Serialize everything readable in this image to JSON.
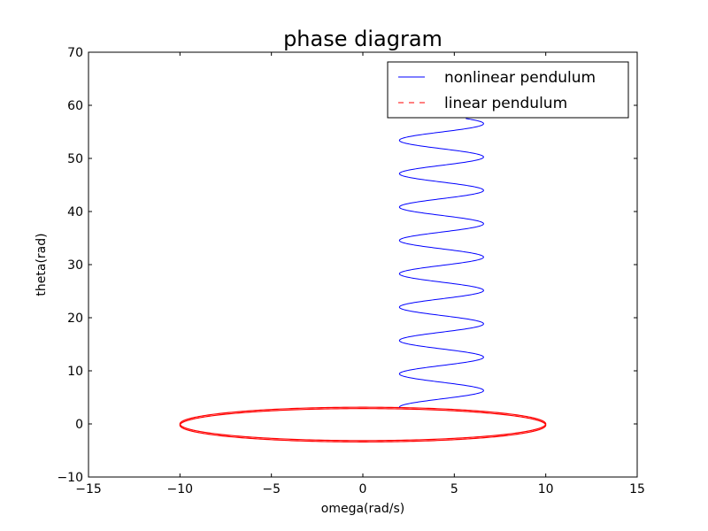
{
  "chart_data": {
    "type": "line",
    "title": "phase diagram",
    "xlabel": "omega(rad/s)",
    "ylabel": "theta(rad)",
    "xlim": [
      -15,
      15
    ],
    "ylim": [
      -10,
      70
    ],
    "xticks": [
      -15,
      -10,
      -5,
      0,
      5,
      10,
      15
    ],
    "yticks": [
      -10,
      0,
      10,
      20,
      30,
      40,
      50,
      60,
      70
    ],
    "xtick_labels": [
      "−15",
      "−10",
      "−5",
      "0",
      "5",
      "10",
      "15"
    ],
    "ytick_labels": [
      "−10",
      "0",
      "10",
      "20",
      "30",
      "40",
      "50",
      "60",
      "70"
    ],
    "grid": false,
    "legend_position": "top-right",
    "series": [
      {
        "name": "nonlinear pendulum",
        "color": "#0000ff",
        "style": "solid",
        "description_points": [
          [
            2.0,
            3.1
          ],
          [
            6.5,
            6.3
          ],
          [
            2.0,
            9.4
          ],
          [
            6.5,
            12.6
          ],
          [
            2.0,
            15.7
          ],
          [
            6.5,
            18.8
          ],
          [
            2.0,
            22.0
          ],
          [
            6.5,
            25.1
          ],
          [
            2.0,
            28.3
          ],
          [
            6.5,
            31.4
          ],
          [
            2.0,
            34.6
          ],
          [
            6.5,
            37.7
          ],
          [
            2.0,
            40.8
          ],
          [
            6.5,
            44.0
          ],
          [
            2.0,
            47.1
          ],
          [
            6.5,
            50.3
          ],
          [
            2.0,
            53.4
          ],
          [
            6.5,
            56.6
          ]
        ],
        "omega_min": 2.0,
        "omega_max": 6.6,
        "theta_start": 3.14,
        "theta_end": 57.5
      },
      {
        "name": "linear pendulum",
        "color": "#ff0000",
        "style": "dashed",
        "shape": "ellipse",
        "omega_amplitude": 10.0,
        "theta_amplitude": 3.14,
        "center": [
          0,
          0
        ]
      }
    ]
  }
}
